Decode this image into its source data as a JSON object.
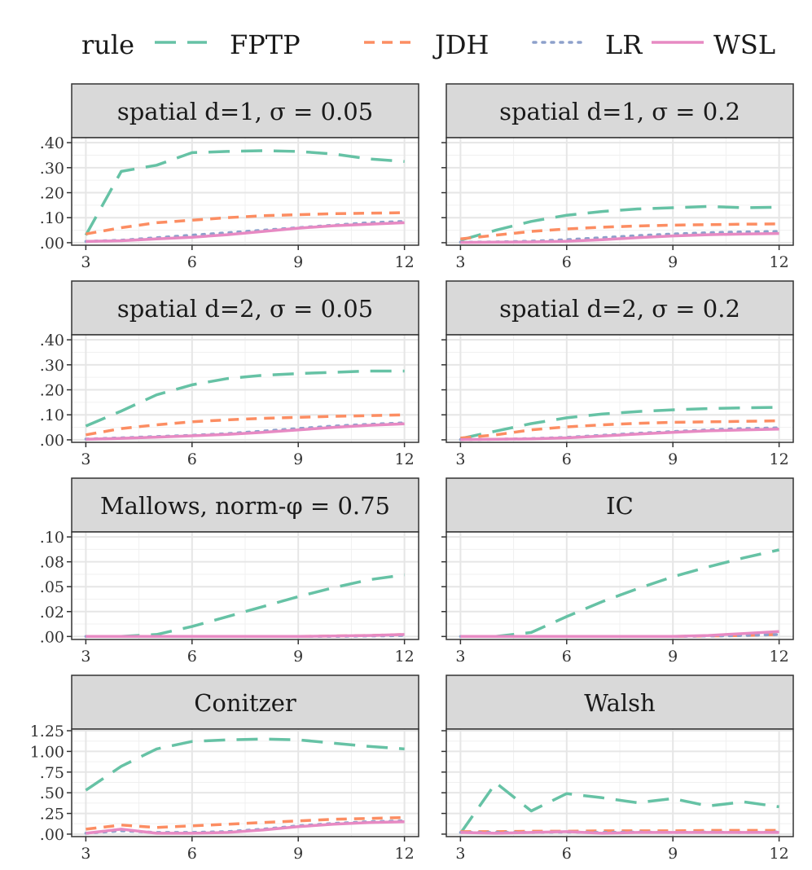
{
  "legend": {
    "title": "rule",
    "items": [
      {
        "name": "FPTP",
        "color": "#66C2A5",
        "linetype": "longdash"
      },
      {
        "name": "JDH",
        "color": "#FC8D62",
        "linetype": "dashed"
      },
      {
        "name": "LR",
        "color": "#8DA0CB",
        "linetype": "dotted"
      },
      {
        "name": "WSL",
        "color": "#E78AC3",
        "linetype": "solid"
      }
    ],
    "placement": "top"
  },
  "chart_data": [
    {
      "type": "line",
      "title": "spatial d=1, σ = 0.05",
      "x": [
        3,
        4,
        5,
        6,
        7,
        8,
        9,
        10,
        11,
        12
      ],
      "ylim": [
        -0.01,
        0.42
      ],
      "y_ticks": [
        0,
        0.1,
        0.2,
        0.3,
        0.4
      ],
      "y_tick_labels": [
        ".00",
        ".10",
        ".20",
        ".30",
        ".40"
      ],
      "show_y_labels": true,
      "series": [
        {
          "name": "FPTP",
          "values": [
            0.03,
            0.285,
            0.31,
            0.36,
            0.365,
            0.368,
            0.365,
            0.355,
            0.335,
            0.325
          ]
        },
        {
          "name": "JDH",
          "values": [
            0.035,
            0.06,
            0.08,
            0.09,
            0.1,
            0.108,
            0.112,
            0.116,
            0.118,
            0.12
          ]
        },
        {
          "name": "LR",
          "values": [
            0.005,
            0.01,
            0.02,
            0.03,
            0.04,
            0.05,
            0.06,
            0.07,
            0.08,
            0.085
          ]
        },
        {
          "name": "WSL",
          "values": [
            0.005,
            0.008,
            0.015,
            0.022,
            0.032,
            0.045,
            0.058,
            0.068,
            0.074,
            0.08
          ]
        }
      ]
    },
    {
      "type": "line",
      "title": "spatial d=1, σ = 0.2",
      "x": [
        3,
        4,
        5,
        6,
        7,
        8,
        9,
        10,
        11,
        12
      ],
      "ylim": [
        -0.01,
        0.42
      ],
      "y_ticks": [
        0,
        0.1,
        0.2,
        0.3,
        0.4
      ],
      "y_tick_labels": [
        ".00",
        ".10",
        ".20",
        ".30",
        ".40"
      ],
      "show_y_labels": false,
      "series": [
        {
          "name": "FPTP",
          "values": [
            0.01,
            0.05,
            0.085,
            0.11,
            0.125,
            0.135,
            0.14,
            0.145,
            0.14,
            0.142
          ]
        },
        {
          "name": "JDH",
          "values": [
            0.015,
            0.03,
            0.045,
            0.055,
            0.062,
            0.067,
            0.07,
            0.072,
            0.074,
            0.075
          ]
        },
        {
          "name": "LR",
          "values": [
            0.002,
            0.003,
            0.006,
            0.012,
            0.02,
            0.028,
            0.035,
            0.04,
            0.043,
            0.045
          ]
        },
        {
          "name": "WSL",
          "values": [
            0.001,
            0.002,
            0.003,
            0.006,
            0.012,
            0.02,
            0.027,
            0.032,
            0.035,
            0.037
          ]
        }
      ]
    },
    {
      "type": "line",
      "title": "spatial d=2, σ = 0.05",
      "x": [
        3,
        4,
        5,
        6,
        7,
        8,
        9,
        10,
        11,
        12
      ],
      "ylim": [
        -0.01,
        0.42
      ],
      "y_ticks": [
        0,
        0.1,
        0.2,
        0.3,
        0.4
      ],
      "y_tick_labels": [
        ".00",
        ".10",
        ".20",
        ".30",
        ".40"
      ],
      "show_y_labels": true,
      "series": [
        {
          "name": "FPTP",
          "values": [
            0.055,
            0.115,
            0.18,
            0.22,
            0.245,
            0.258,
            0.265,
            0.27,
            0.275,
            0.275
          ]
        },
        {
          "name": "JDH",
          "values": [
            0.02,
            0.045,
            0.06,
            0.072,
            0.08,
            0.086,
            0.09,
            0.094,
            0.097,
            0.1
          ]
        },
        {
          "name": "LR",
          "values": [
            0.003,
            0.008,
            0.013,
            0.018,
            0.025,
            0.035,
            0.045,
            0.055,
            0.062,
            0.068
          ]
        },
        {
          "name": "WSL",
          "values": [
            0.002,
            0.006,
            0.011,
            0.016,
            0.022,
            0.03,
            0.04,
            0.05,
            0.058,
            0.064
          ]
        }
      ]
    },
    {
      "type": "line",
      "title": "spatial d=2, σ = 0.2",
      "x": [
        3,
        4,
        5,
        6,
        7,
        8,
        9,
        10,
        11,
        12
      ],
      "ylim": [
        -0.01,
        0.42
      ],
      "y_ticks": [
        0,
        0.1,
        0.2,
        0.3,
        0.4
      ],
      "y_tick_labels": [
        ".00",
        ".10",
        ".20",
        ".30",
        ".40"
      ],
      "show_y_labels": false,
      "series": [
        {
          "name": "FPTP",
          "values": [
            0.005,
            0.035,
            0.065,
            0.088,
            0.103,
            0.113,
            0.12,
            0.125,
            0.128,
            0.13
          ]
        },
        {
          "name": "JDH",
          "values": [
            0.007,
            0.02,
            0.04,
            0.052,
            0.06,
            0.066,
            0.07,
            0.072,
            0.074,
            0.076
          ]
        },
        {
          "name": "LR",
          "values": [
            0.001,
            0.002,
            0.005,
            0.01,
            0.018,
            0.026,
            0.033,
            0.04,
            0.045,
            0.048
          ]
        },
        {
          "name": "WSL",
          "values": [
            0.001,
            0.002,
            0.004,
            0.008,
            0.015,
            0.023,
            0.03,
            0.036,
            0.04,
            0.043
          ]
        }
      ]
    },
    {
      "type": "line",
      "title": "Mallows, norm-φ = 0.75",
      "x": [
        3,
        4,
        5,
        6,
        7,
        8,
        9,
        10,
        11,
        12
      ],
      "ylim": [
        -0.003,
        0.105
      ],
      "y_ticks": [
        0,
        0.025,
        0.05,
        0.075,
        0.1
      ],
      "y_tick_labels": [
        ".00",
        ".02",
        ".05",
        ".08",
        ".10"
      ],
      "show_y_labels": true,
      "series": [
        {
          "name": "FPTP",
          "values": [
            0.0,
            0.0,
            0.002,
            0.01,
            0.02,
            0.03,
            0.04,
            0.049,
            0.057,
            0.062
          ]
        },
        {
          "name": "JDH",
          "values": [
            0.0,
            0.0,
            0.0,
            0.0,
            0.0,
            0.0,
            0.0,
            0.0005,
            0.001,
            0.002
          ]
        },
        {
          "name": "LR",
          "values": [
            0.0,
            0.0,
            0.0,
            0.0,
            0.0,
            0.0,
            0.0,
            0.0,
            0.0005,
            0.001
          ]
        },
        {
          "name": "WSL",
          "values": [
            0.0,
            0.0,
            0.0,
            0.0,
            0.0,
            0.0,
            0.0,
            0.0005,
            0.001,
            0.002
          ]
        }
      ]
    },
    {
      "type": "line",
      "title": "IC",
      "x": [
        3,
        4,
        5,
        6,
        7,
        8,
        9,
        10,
        11,
        12
      ],
      "ylim": [
        -0.003,
        0.105
      ],
      "y_ticks": [
        0,
        0.025,
        0.05,
        0.075,
        0.1
      ],
      "y_tick_labels": [
        ".00",
        ".02",
        ".05",
        ".08",
        ".10"
      ],
      "show_y_labels": false,
      "series": [
        {
          "name": "FPTP",
          "values": [
            0.0,
            0.0,
            0.004,
            0.02,
            0.035,
            0.048,
            0.06,
            0.07,
            0.079,
            0.087
          ]
        },
        {
          "name": "JDH",
          "values": [
            0.0,
            0.0,
            0.0,
            0.0,
            0.0,
            0.0,
            0.0,
            0.0005,
            0.001,
            0.002
          ]
        },
        {
          "name": "LR",
          "values": [
            0.0,
            0.0,
            0.0,
            0.0,
            0.0,
            0.0,
            0.0,
            0.0005,
            0.001,
            0.002
          ]
        },
        {
          "name": "WSL",
          "values": [
            0.0,
            0.0,
            0.0,
            0.0,
            0.0,
            0.0,
            0.0,
            0.001,
            0.003,
            0.005
          ]
        }
      ]
    },
    {
      "type": "line",
      "title": "Conitzer",
      "x": [
        3,
        4,
        5,
        6,
        7,
        8,
        9,
        10,
        11,
        12
      ],
      "ylim": [
        -0.03,
        1.27
      ],
      "y_ticks": [
        0,
        0.25,
        0.5,
        0.75,
        1.0,
        1.25
      ],
      "y_tick_labels": [
        ".00",
        ".25",
        ".50",
        ".75",
        "1.00",
        "1.25"
      ],
      "show_y_labels": true,
      "series": [
        {
          "name": "FPTP",
          "values": [
            0.53,
            0.82,
            1.03,
            1.12,
            1.14,
            1.15,
            1.14,
            1.1,
            1.06,
            1.03
          ]
        },
        {
          "name": "JDH",
          "values": [
            0.06,
            0.11,
            0.08,
            0.1,
            0.12,
            0.14,
            0.16,
            0.18,
            0.19,
            0.2
          ]
        },
        {
          "name": "LR",
          "values": [
            0.01,
            0.04,
            0.02,
            0.02,
            0.03,
            0.06,
            0.1,
            0.13,
            0.15,
            0.16
          ]
        },
        {
          "name": "WSL",
          "values": [
            0.01,
            0.06,
            0.01,
            0.01,
            0.02,
            0.05,
            0.09,
            0.12,
            0.14,
            0.15
          ]
        }
      ]
    },
    {
      "type": "line",
      "title": "Walsh",
      "x": [
        3,
        4,
        5,
        6,
        7,
        8,
        9,
        10,
        11,
        12
      ],
      "ylim": [
        -0.03,
        1.27
      ],
      "y_ticks": [
        0,
        0.25,
        0.5,
        0.75,
        1.0,
        1.25
      ],
      "y_tick_labels": [
        ".00",
        ".25",
        ".50",
        ".75",
        "1.00",
        "1.25"
      ],
      "show_y_labels": false,
      "series": [
        {
          "name": "FPTP",
          "values": [
            0.01,
            0.62,
            0.28,
            0.49,
            0.44,
            0.38,
            0.43,
            0.34,
            0.39,
            0.33
          ]
        },
        {
          "name": "JDH",
          "values": [
            0.03,
            0.03,
            0.035,
            0.035,
            0.04,
            0.04,
            0.04,
            0.045,
            0.045,
            0.045
          ]
        },
        {
          "name": "LR",
          "values": [
            0.02,
            0.02,
            0.02,
            0.025,
            0.02,
            0.025,
            0.02,
            0.025,
            0.02,
            0.025
          ]
        },
        {
          "name": "WSL",
          "values": [
            0.02,
            0.01,
            0.02,
            0.03,
            0.01,
            0.02,
            0.02,
            0.02,
            0.02,
            0.02
          ]
        }
      ]
    }
  ],
  "x_ticks": [
    3,
    6,
    9,
    12
  ],
  "x_tick_labels": [
    "3",
    "6",
    "9",
    "12"
  ]
}
